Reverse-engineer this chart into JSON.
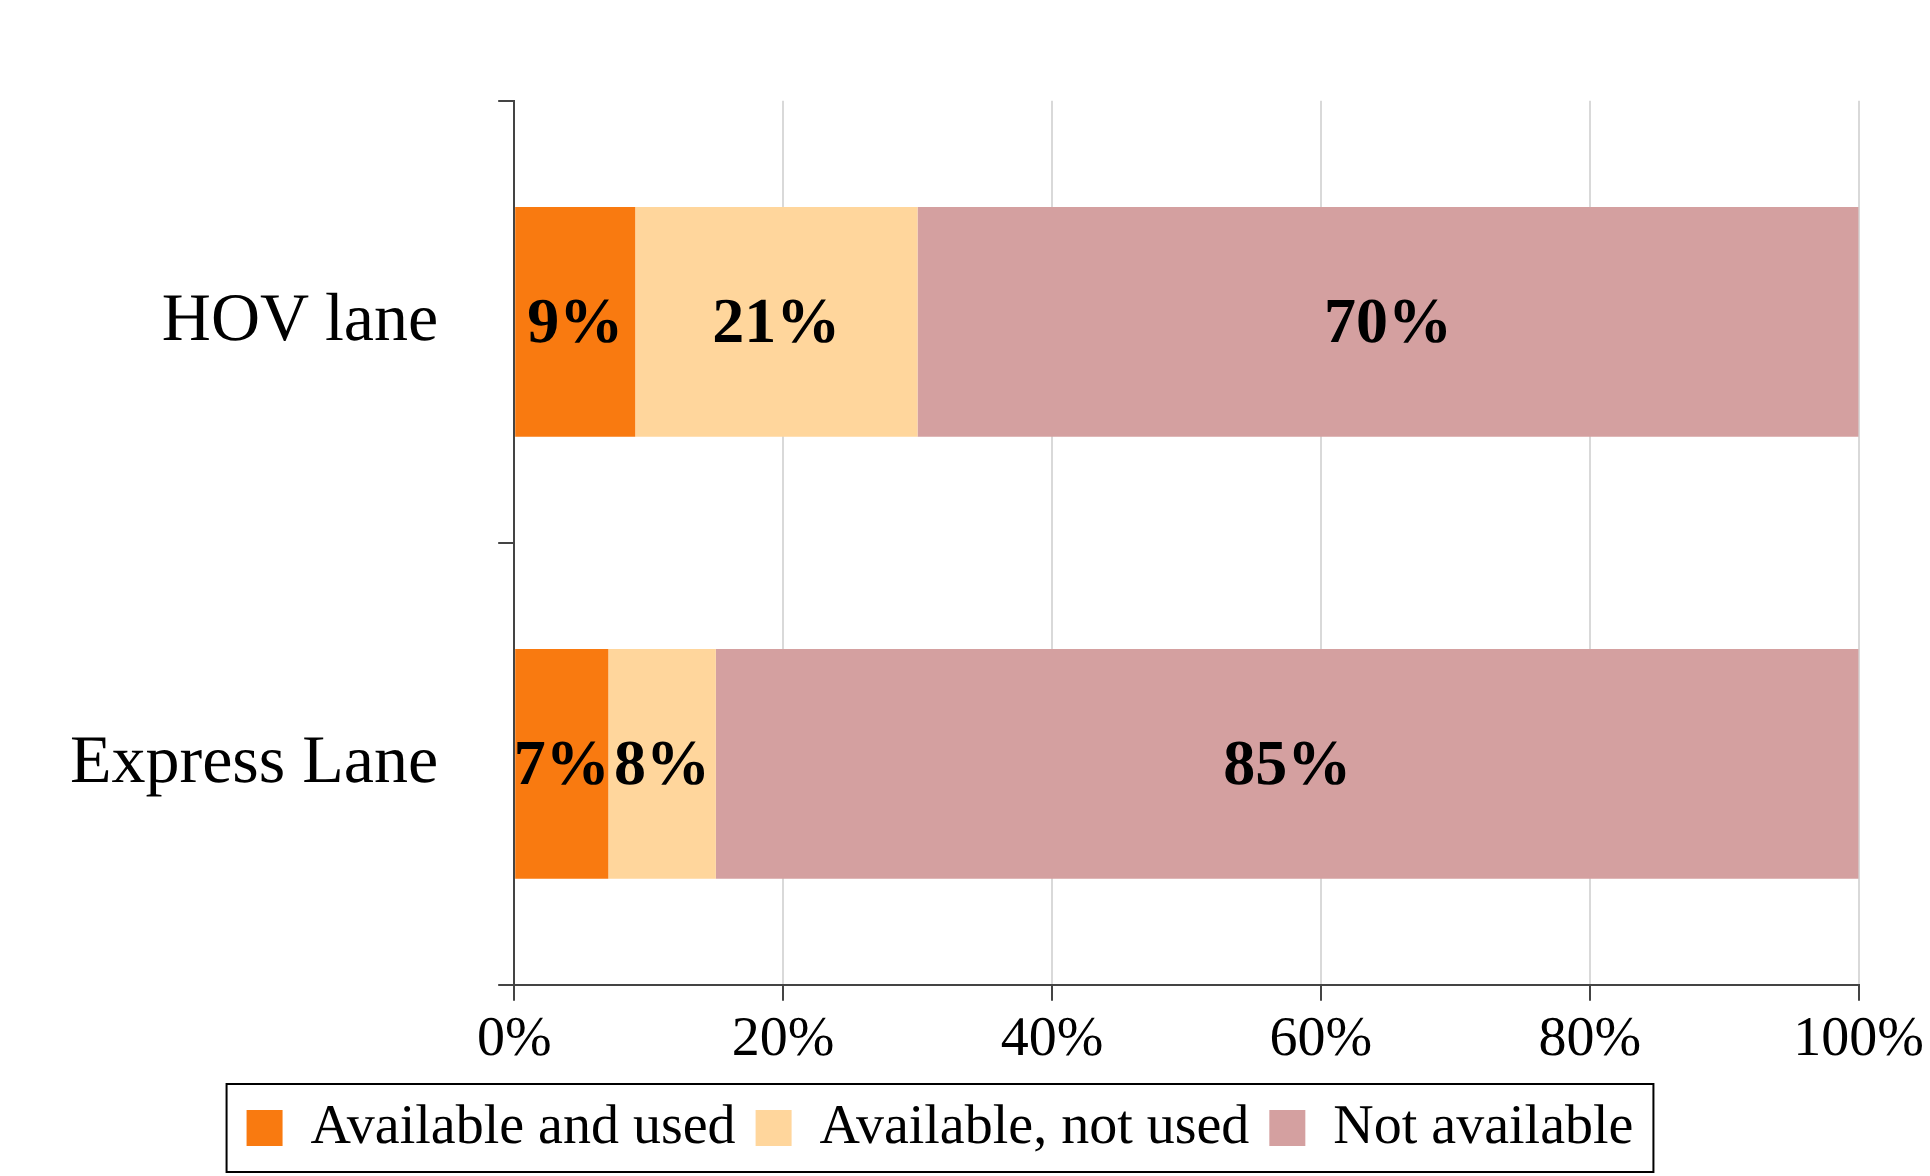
{
  "chart_data": {
    "type": "bar",
    "orientation": "horizontal",
    "stacked": true,
    "categories": [
      "HOV lane",
      "Express Lane"
    ],
    "series": [
      {
        "name": "Available and used",
        "color": "#f97a10",
        "values": [
          9,
          7
        ],
        "value_labels": [
          "9%",
          "7%"
        ]
      },
      {
        "name": "Available, not used",
        "color": "#ffd69c",
        "values": [
          21,
          8
        ],
        "value_labels": [
          "21%",
          "8%"
        ]
      },
      {
        "name": "Not available",
        "color": "#d4a0a0",
        "values": [
          70,
          85
        ],
        "value_labels": [
          "70%",
          "85%"
        ]
      }
    ],
    "xlim": [
      0,
      100
    ],
    "xticks": [
      {
        "value": 0,
        "label": "0%"
      },
      {
        "value": 20,
        "label": "20%"
      },
      {
        "value": 40,
        "label": "40%"
      },
      {
        "value": 60,
        "label": "60%"
      },
      {
        "value": 80,
        "label": "80%"
      },
      {
        "value": 100,
        "label": "100%"
      }
    ],
    "grid": "x",
    "legend": "bottom"
  }
}
